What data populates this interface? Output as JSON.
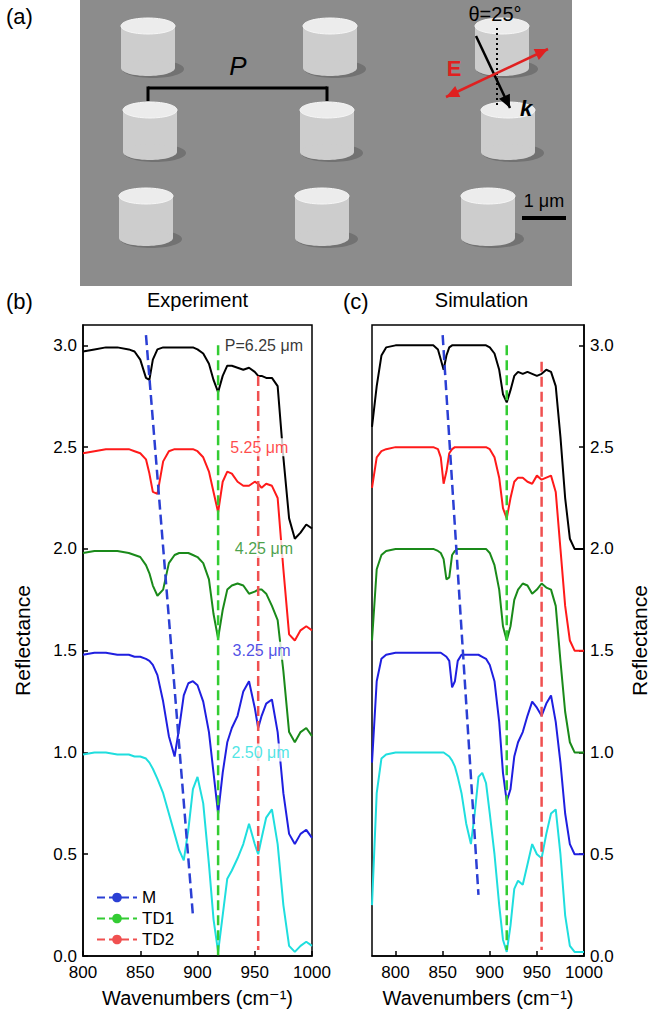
{
  "sem_image": {
    "panel_label": "(a)",
    "period_label": "P",
    "angle_label": "θ=25°",
    "field_label": "E",
    "wavevector_label": "k",
    "scale_bar_label": "1 μm"
  },
  "chart_data": [
    {
      "type": "line",
      "panel_label": "(b)",
      "title": "Experiment",
      "xlabel": "Wavenumbers (cm⁻¹)",
      "ylabel": "Reflectance",
      "xlim": [
        800,
        1000
      ],
      "xticks": [
        800,
        850,
        900,
        950,
        1000
      ],
      "ylim": [
        0,
        3.1
      ],
      "yticks": [
        {
          "value": 0,
          "label": "0.0"
        },
        0.5,
        {
          "value": 1,
          "label": "1.0"
        },
        1.5,
        {
          "value": 2,
          "label": "2.0"
        },
        2.5,
        {
          "value": 3,
          "label": "3.0"
        }
      ],
      "grid": false,
      "legend": "lower left",
      "x": [
        800,
        810,
        820,
        830,
        840,
        845,
        850,
        855,
        858,
        861,
        865,
        870,
        875,
        880,
        884,
        888,
        892,
        896,
        900,
        905,
        910,
        914,
        918,
        922,
        926,
        930,
        935,
        940,
        945,
        950,
        953,
        956,
        960,
        965,
        970,
        975,
        980,
        985,
        990,
        995,
        1000
      ],
      "series": [
        {
          "color": "#000000",
          "values": [
            2.97,
            2.98,
            2.99,
            2.99,
            2.98,
            2.97,
            2.93,
            2.84,
            2.83,
            2.93,
            2.98,
            2.99,
            2.99,
            2.99,
            2.99,
            2.99,
            2.99,
            2.99,
            2.98,
            2.96,
            2.91,
            2.83,
            2.77,
            2.85,
            2.9,
            2.9,
            2.89,
            2.88,
            2.89,
            2.87,
            2.85,
            2.85,
            2.84,
            2.84,
            2.8,
            2.45,
            2.15,
            2.05,
            2.08,
            2.12,
            2.1
          ]
        },
        {
          "color": "#ff1a1a",
          "values": [
            2.47,
            2.48,
            2.49,
            2.49,
            2.49,
            2.48,
            2.47,
            2.44,
            2.37,
            2.28,
            2.27,
            2.43,
            2.48,
            2.49,
            2.49,
            2.49,
            2.49,
            2.49,
            2.48,
            2.45,
            2.38,
            2.28,
            2.18,
            2.33,
            2.38,
            2.37,
            2.33,
            2.31,
            2.31,
            2.33,
            2.32,
            2.3,
            2.32,
            2.31,
            2.25,
            1.9,
            1.58,
            1.55,
            1.6,
            1.62,
            1.6
          ]
        },
        {
          "color": "#1a8a1a",
          "values": [
            1.98,
            1.99,
            1.99,
            1.99,
            1.98,
            1.97,
            1.96,
            1.92,
            1.88,
            1.82,
            1.77,
            1.8,
            1.93,
            1.97,
            1.98,
            1.98,
            1.98,
            1.97,
            1.96,
            1.93,
            1.85,
            1.68,
            1.56,
            1.7,
            1.8,
            1.82,
            1.83,
            1.82,
            1.78,
            1.79,
            1.8,
            1.8,
            1.78,
            1.72,
            1.65,
            1.4,
            1.1,
            1.05,
            1.1,
            1.12,
            1.08
          ]
        },
        {
          "color": "#1f1fe0",
          "values": [
            1.48,
            1.49,
            1.49,
            1.48,
            1.48,
            1.47,
            1.47,
            1.46,
            1.45,
            1.43,
            1.38,
            1.25,
            1.08,
            0.98,
            1.12,
            1.28,
            1.34,
            1.35,
            1.33,
            1.25,
            1.1,
            0.9,
            0.7,
            0.9,
            1.05,
            1.12,
            1.18,
            1.3,
            1.35,
            1.22,
            1.12,
            1.18,
            1.24,
            1.26,
            1.1,
            0.8,
            0.6,
            0.55,
            0.6,
            0.62,
            0.58
          ]
        },
        {
          "color": "#1fdede",
          "values": [
            0.99,
            1.0,
            1.0,
            0.99,
            0.99,
            0.98,
            0.98,
            0.97,
            0.95,
            0.92,
            0.87,
            0.8,
            0.7,
            0.6,
            0.52,
            0.47,
            0.62,
            0.82,
            0.88,
            0.75,
            0.45,
            0.18,
            0.02,
            0.2,
            0.38,
            0.42,
            0.48,
            0.55,
            0.65,
            0.55,
            0.5,
            0.58,
            0.68,
            0.72,
            0.55,
            0.25,
            0.05,
            0.02,
            0.05,
            0.07,
            0.05
          ]
        },
        {
          "name": "M",
          "color": "#2b3fd4",
          "line_style": "dashed",
          "x": [
            855,
            896
          ],
          "values": [
            3.05,
            0.2
          ]
        },
        {
          "name": "TD1",
          "color": "#33cc33",
          "line_style": "dashed",
          "x": [
            918,
            918
          ],
          "values": [
            3.0,
            0.0
          ]
        },
        {
          "name": "TD2",
          "color": "#f05050",
          "line_style": "dashed",
          "x": [
            953,
            953
          ],
          "values": [
            2.85,
            0.03
          ]
        }
      ],
      "annotations": [
        {
          "text": "P=6.25 μm",
          "x": 958,
          "y": 3.0,
          "color": "#000000"
        },
        {
          "text": "5.25 μm",
          "x": 954,
          "y": 2.5,
          "color": "#ff1a1a"
        },
        {
          "text": "4.25 μm",
          "x": 958,
          "y": 2.0,
          "color": "#1a8a1a"
        },
        {
          "text": "3.25 μm",
          "x": 956,
          "y": 1.5,
          "color": "#1f1fe0"
        },
        {
          "text": "2.50 μm",
          "x": 955,
          "y": 1.0,
          "color": "#1fdede"
        }
      ]
    },
    {
      "type": "line",
      "panel_label": "(c)",
      "title": "Simulation",
      "xlabel": "Wavenumbers (cm⁻¹)",
      "ylabel": "Reflectance",
      "xlim": [
        775,
        1000
      ],
      "xticks": [
        800,
        850,
        900,
        950,
        1000
      ],
      "ylim": [
        0,
        3.1
      ],
      "yticks": [
        {
          "value": 0,
          "label": "0.0"
        },
        0.5,
        {
          "value": 1,
          "label": "1.0"
        },
        1.5,
        {
          "value": 2,
          "label": "2.0"
        },
        2.5,
        {
          "value": 3,
          "label": "3.0"
        }
      ],
      "grid": false,
      "x": [
        775,
        780,
        785,
        790,
        800,
        810,
        820,
        830,
        840,
        845,
        848,
        851,
        854,
        857,
        860,
        863,
        866,
        870,
        875,
        880,
        884,
        888,
        892,
        896,
        900,
        905,
        910,
        914,
        918,
        922,
        926,
        930,
        935,
        940,
        945,
        950,
        955,
        960,
        965,
        970,
        975,
        980,
        985,
        990,
        995,
        1000
      ],
      "series": [
        {
          "color": "#000000",
          "values": [
            2.6,
            2.8,
            2.95,
            2.99,
            3.0,
            3.0,
            3.0,
            3.0,
            3.0,
            2.98,
            2.93,
            2.88,
            2.95,
            2.99,
            3.0,
            3.0,
            3.0,
            3.0,
            3.0,
            3.0,
            3.0,
            3.0,
            3.0,
            3.0,
            2.99,
            2.96,
            2.88,
            2.76,
            2.72,
            2.78,
            2.85,
            2.87,
            2.86,
            2.87,
            2.86,
            2.85,
            2.86,
            2.88,
            2.87,
            2.8,
            2.55,
            2.25,
            2.05,
            2.0,
            2.0,
            2.0
          ]
        },
        {
          "color": "#ff1a1a",
          "values": [
            2.3,
            2.45,
            2.48,
            2.49,
            2.5,
            2.5,
            2.5,
            2.5,
            2.5,
            2.49,
            2.45,
            2.32,
            2.38,
            2.47,
            2.49,
            2.5,
            2.5,
            2.5,
            2.5,
            2.5,
            2.5,
            2.5,
            2.5,
            2.5,
            2.49,
            2.45,
            2.35,
            2.2,
            2.15,
            2.25,
            2.33,
            2.35,
            2.35,
            2.33,
            2.32,
            2.36,
            2.34,
            2.35,
            2.36,
            2.28,
            2.0,
            1.72,
            1.55,
            1.5,
            1.5,
            1.5
          ]
        },
        {
          "color": "#1a8a1a",
          "values": [
            1.55,
            1.9,
            1.97,
            1.99,
            2.0,
            2.0,
            2.0,
            2.0,
            2.0,
            1.99,
            1.98,
            1.95,
            1.85,
            1.86,
            1.97,
            1.99,
            2.0,
            2.0,
            2.0,
            2.0,
            2.0,
            2.0,
            2.0,
            2.0,
            1.98,
            1.92,
            1.8,
            1.62,
            1.55,
            1.62,
            1.75,
            1.8,
            1.83,
            1.82,
            1.78,
            1.8,
            1.83,
            1.81,
            1.8,
            1.72,
            1.45,
            1.2,
            1.05,
            1.0,
            1.0,
            1.0
          ]
        },
        {
          "color": "#1f1fe0",
          "values": [
            0.95,
            1.35,
            1.46,
            1.48,
            1.49,
            1.49,
            1.49,
            1.49,
            1.49,
            1.49,
            1.49,
            1.48,
            1.47,
            1.45,
            1.32,
            1.35,
            1.45,
            1.48,
            1.48,
            1.48,
            1.48,
            1.48,
            1.47,
            1.46,
            1.43,
            1.35,
            1.15,
            0.9,
            0.76,
            0.82,
            0.98,
            1.05,
            1.1,
            1.18,
            1.25,
            1.22,
            1.18,
            1.24,
            1.28,
            1.15,
            0.95,
            0.7,
            0.55,
            0.5,
            0.5,
            0.5
          ]
        },
        {
          "color": "#1fdede",
          "values": [
            0.25,
            0.8,
            0.97,
            0.99,
            1.0,
            1.0,
            1.0,
            1.0,
            1.0,
            1.0,
            1.0,
            1.0,
            0.99,
            0.98,
            0.96,
            0.93,
            0.88,
            0.8,
            0.65,
            0.55,
            0.7,
            0.88,
            0.9,
            0.85,
            0.7,
            0.5,
            0.25,
            0.08,
            0.02,
            0.15,
            0.33,
            0.37,
            0.35,
            0.45,
            0.55,
            0.5,
            0.48,
            0.6,
            0.7,
            0.72,
            0.5,
            0.2,
            0.05,
            0.02,
            0.02,
            0.02
          ]
        },
        {
          "color": "#2b3fd4",
          "line_style": "dashed",
          "x": [
            850,
            888
          ],
          "values": [
            3.05,
            0.3
          ]
        },
        {
          "color": "#33cc33",
          "line_style": "dashed",
          "x": [
            918,
            918
          ],
          "values": [
            3.0,
            0.03
          ]
        },
        {
          "color": "#f05050",
          "line_style": "dashed",
          "x": [
            955,
            955
          ],
          "values": [
            2.92,
            0.03
          ]
        }
      ]
    }
  ]
}
